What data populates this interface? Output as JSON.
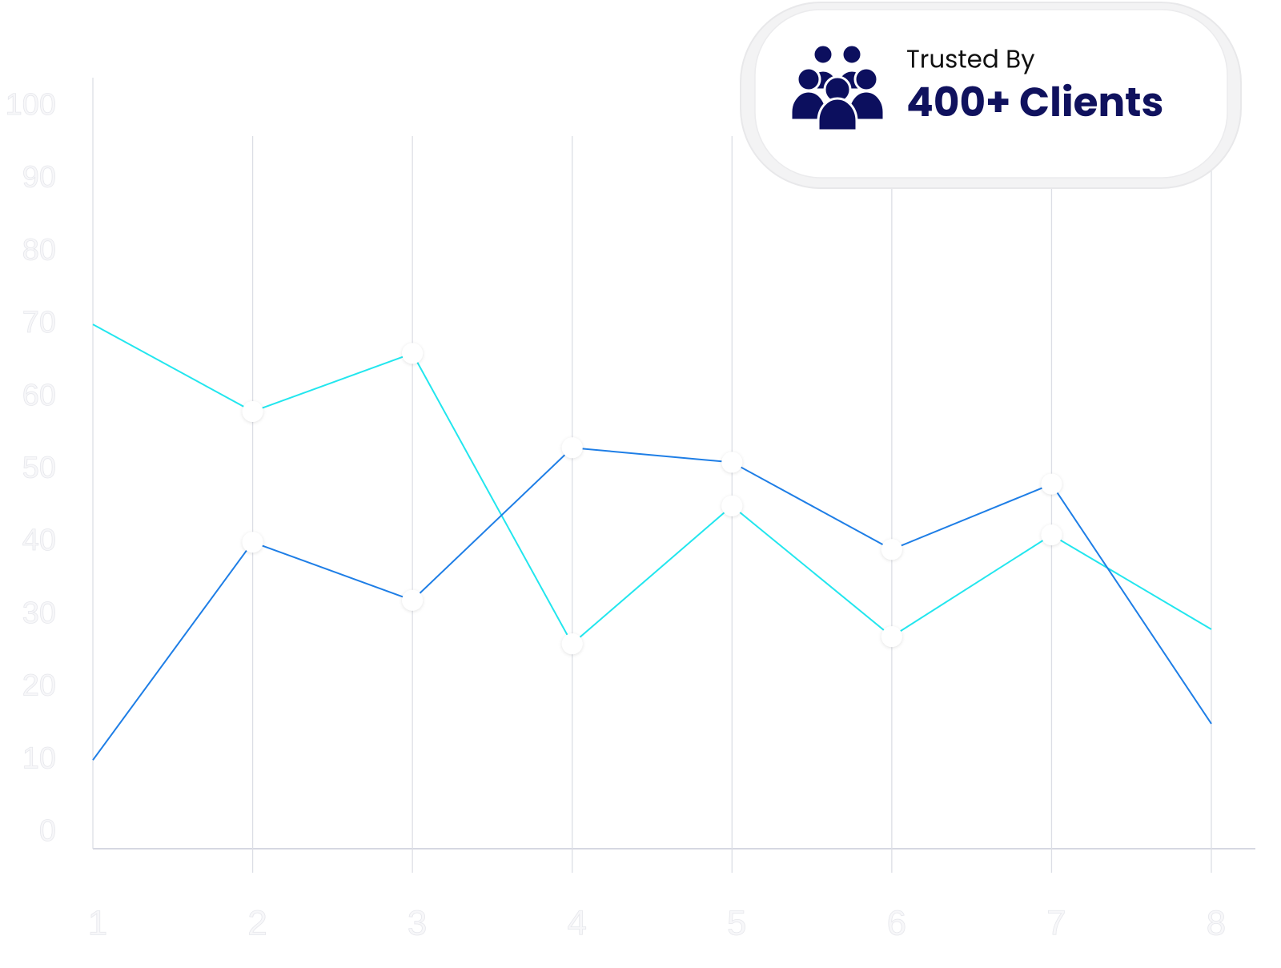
{
  "chart_data": {
    "type": "line",
    "x": [
      1,
      2,
      3,
      4,
      5,
      6,
      7,
      8
    ],
    "xlim": [
      1,
      8
    ],
    "xticks": [
      1,
      2,
      3,
      4,
      5,
      6,
      7,
      8
    ],
    "ylim": [
      0,
      100
    ],
    "yticks": [
      0,
      10,
      20,
      30,
      40,
      50,
      60,
      70,
      80,
      90,
      100
    ],
    "grid": true,
    "series": [
      {
        "color": "#22e6ee",
        "values": [
          70,
          58,
          66,
          26,
          45,
          27,
          41,
          28
        ]
      },
      {
        "color": "#1e7ee6",
        "values": [
          10,
          40,
          32,
          53,
          51,
          39,
          48,
          15
        ]
      }
    ]
  },
  "badge": {
    "label": "Trusted By",
    "value": "400+ Clients"
  }
}
